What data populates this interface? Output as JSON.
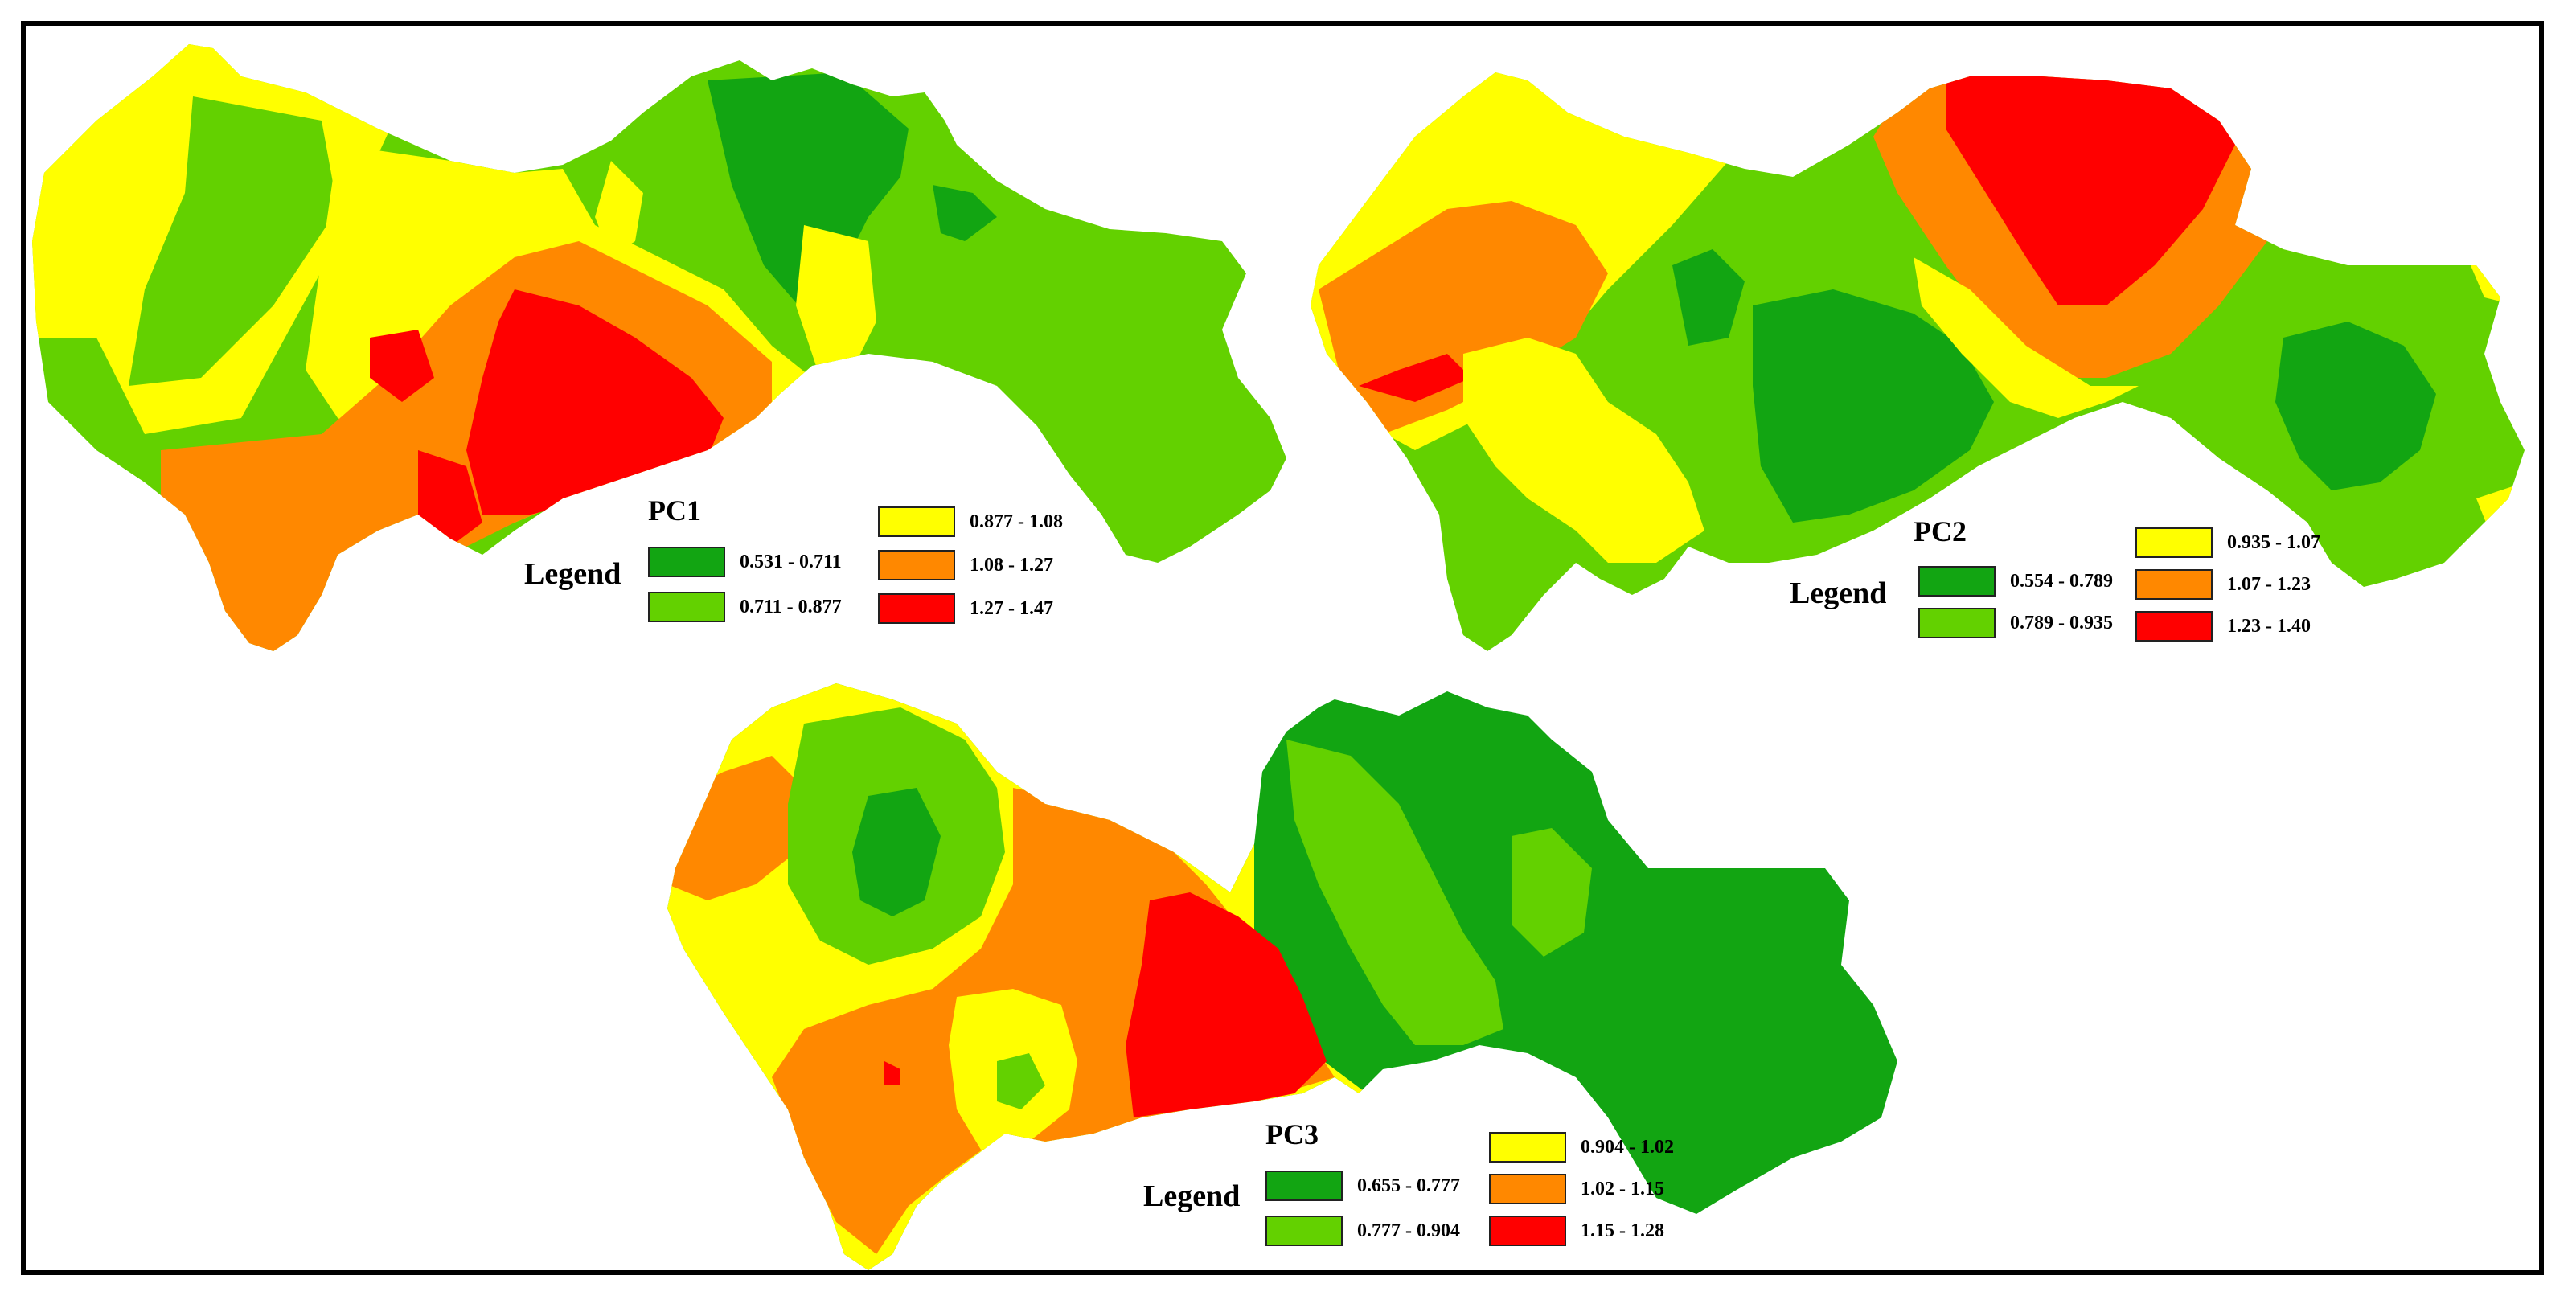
{
  "colors": {
    "dark_green": "#12a512",
    "light_green": "#63d100",
    "yellow": "#ffff00",
    "orange": "#ff8800",
    "red": "#ff0000",
    "frame": "#000000"
  },
  "maps": [
    {
      "id": "pc1",
      "title": "PC1",
      "legend_word": "Legend",
      "classes": [
        {
          "range": "0.531 - 0.711",
          "color": "#12a512"
        },
        {
          "range": "0.711 - 0.877",
          "color": "#63d100"
        },
        {
          "range": "0.877 - 1.08",
          "color": "#ffff00"
        },
        {
          "range": "1.08 - 1.27",
          "color": "#ff8800"
        },
        {
          "range": "1.27 - 1.47",
          "color": "#ff0000"
        }
      ]
    },
    {
      "id": "pc2",
      "title": "PC2",
      "legend_word": "Legend",
      "classes": [
        {
          "range": "0.554 - 0.789",
          "color": "#12a512"
        },
        {
          "range": "0.789 - 0.935",
          "color": "#63d100"
        },
        {
          "range": "0.935 - 1.07",
          "color": "#ffff00"
        },
        {
          "range": "1.07 - 1.23",
          "color": "#ff8800"
        },
        {
          "range": "1.23 - 1.40",
          "color": "#ff0000"
        }
      ]
    },
    {
      "id": "pc3",
      "title": "PC3",
      "legend_word": "Legend",
      "classes": [
        {
          "range": "0.655 - 0.777",
          "color": "#12a512"
        },
        {
          "range": "0.777 - 0.904",
          "color": "#63d100"
        },
        {
          "range": "0.904 - 1.02",
          "color": "#ffff00"
        },
        {
          "range": "1.02 - 1.15",
          "color": "#ff8800"
        },
        {
          "range": "1.15 - 1.28",
          "color": "#ff0000"
        }
      ]
    }
  ]
}
